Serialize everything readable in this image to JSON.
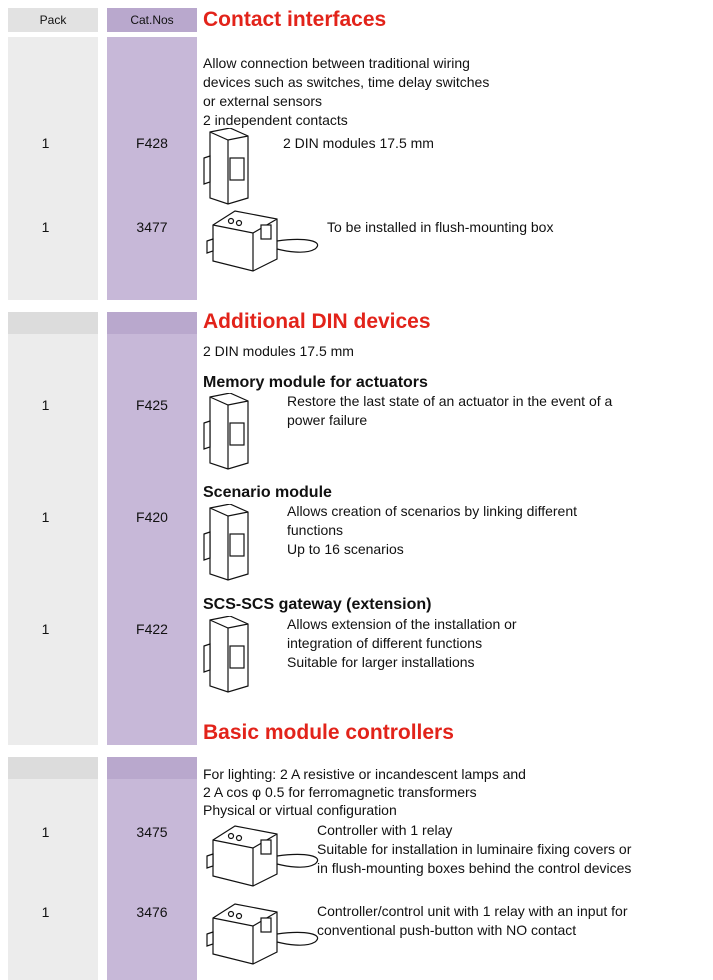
{
  "header": {
    "pack": "Pack",
    "cat_nos": "Cat.Nos"
  },
  "sections": [
    {
      "title": "Contact interfaces",
      "intro": [
        "Allow connection between traditional wiring",
        "devices such as switches, time delay switches",
        "or external sensors",
        "2 independent contacts"
      ],
      "items": [
        {
          "pack": "1",
          "cat_no": "F428",
          "description": [
            "2 DIN modules 17.5 mm"
          ]
        },
        {
          "pack": "1",
          "cat_no": "3477",
          "description": [
            "To be installed in flush-mounting box"
          ]
        }
      ]
    },
    {
      "title": "Additional DIN devices",
      "intro": [
        "2 DIN modules 17.5 mm"
      ],
      "items": [
        {
          "pack": "1",
          "cat_no": "F425",
          "name": "Memory module for actuators",
          "description": [
            "Restore the last state of an actuator in the event of a",
            "power failure"
          ]
        },
        {
          "pack": "1",
          "cat_no": "F420",
          "name": "Scenario module",
          "description": [
            "Allows creation of scenarios by linking different",
            "functions",
            "Up to 16 scenarios"
          ]
        },
        {
          "pack": "1",
          "cat_no": "F422",
          "name": "SCS-SCS gateway (extension)",
          "description": [
            "Allows extension of the installation or",
            "integration of different functions",
            "Suitable for larger installations"
          ]
        }
      ]
    },
    {
      "title": "Basic module controllers",
      "intro": [
        "For lighting: 2 A resistive or incandescent lamps and",
        "2 A cos φ 0.5 for ferromagnetic transformers",
        "Physical or virtual configuration"
      ],
      "items": [
        {
          "pack": "1",
          "cat_no": "3475",
          "description": [
            "Controller with 1 relay",
            "Suitable for installation in luminaire fixing covers or",
            "in flush-mounting boxes behind the control devices"
          ]
        },
        {
          "pack": "1",
          "cat_no": "3476",
          "description": [
            "Controller/control unit with 1 relay with an input for",
            "conventional push-button with NO contact"
          ]
        }
      ]
    }
  ]
}
